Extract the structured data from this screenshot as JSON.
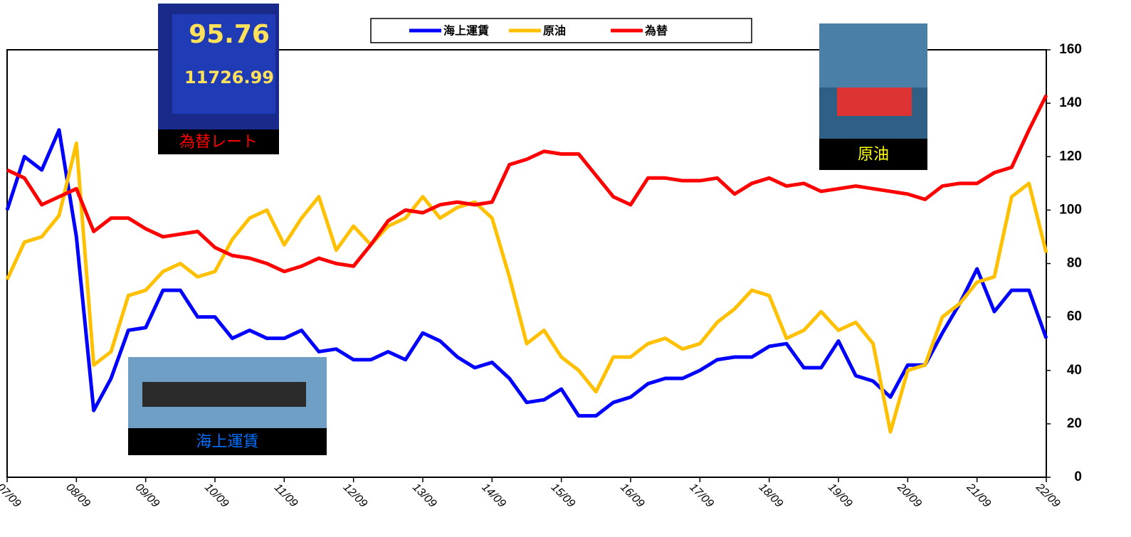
{
  "chart_data": {
    "type": "line",
    "x": [
      2007.67,
      2007.92,
      2008.17,
      2008.42,
      2008.67,
      2008.92,
      2009.17,
      2009.42,
      2009.67,
      2009.92,
      2010.17,
      2010.42,
      2010.67,
      2010.92,
      2011.17,
      2011.42,
      2011.67,
      2011.92,
      2012.17,
      2012.42,
      2012.67,
      2012.92,
      2013.17,
      2013.42,
      2013.67,
      2013.92,
      2014.17,
      2014.42,
      2014.67,
      2014.92,
      2015.17,
      2015.42,
      2015.67,
      2015.92,
      2016.17,
      2016.42,
      2016.67,
      2016.92,
      2017.17,
      2017.42,
      2017.67,
      2017.92,
      2018.17,
      2018.42,
      2018.67,
      2018.92,
      2019.17,
      2019.42,
      2019.67,
      2019.92,
      2020.17,
      2020.42,
      2020.67,
      2020.92,
      2021.17,
      2021.42,
      2021.67,
      2021.92,
      2022.17,
      2022.42,
      2022.67
    ],
    "series": [
      {
        "name": "海上運賃",
        "color": "#0000ff",
        "values": [
          100,
          120,
          115,
          130,
          90,
          25,
          37,
          55,
          56,
          70,
          70,
          60,
          60,
          52,
          55,
          52,
          52,
          55,
          47,
          48,
          44,
          44,
          47,
          44,
          54,
          51,
          45,
          41,
          43,
          37,
          28,
          29,
          33,
          23,
          23,
          28,
          30,
          35,
          37,
          37,
          40,
          44,
          45,
          45,
          49,
          50,
          41,
          41,
          51,
          38,
          36,
          30,
          42,
          42,
          54,
          65,
          78,
          62,
          70,
          70,
          52
        ]
      },
      {
        "name": "原油",
        "color": "#ffc000",
        "values": [
          74,
          88,
          90,
          98,
          125,
          42,
          47,
          68,
          70,
          77,
          80,
          75,
          77,
          89,
          97,
          100,
          87,
          97,
          105,
          85,
          94,
          87,
          94,
          97,
          105,
          97,
          101,
          103,
          97,
          75,
          50,
          55,
          45,
          40,
          32,
          45,
          45,
          50,
          52,
          48,
          50,
          58,
          63,
          70,
          68,
          52,
          55,
          62,
          55,
          58,
          50,
          17,
          40,
          42,
          60,
          65,
          73,
          75,
          105,
          110,
          84
        ]
      },
      {
        "name": "為替",
        "color": "#ff0000",
        "values": [
          115,
          112,
          102,
          105,
          108,
          92,
          97,
          97,
          93,
          90,
          91,
          92,
          86,
          83,
          82,
          80,
          77,
          79,
          82,
          80,
          79,
          87,
          96,
          100,
          99,
          102,
          103,
          102,
          103,
          117,
          119,
          122,
          121,
          121,
          113,
          105,
          102,
          112,
          112,
          111,
          111,
          112,
          106,
          110,
          112,
          109,
          110,
          107,
          108,
          109,
          108,
          107,
          106,
          104,
          109,
          110,
          110,
          114,
          116,
          130,
          143
        ]
      }
    ],
    "xlim": [
      2007.67,
      2022.67
    ],
    "xticks": [
      {
        "value": 2007.67,
        "label": "07/09"
      },
      {
        "value": 2008.67,
        "label": "08/09"
      },
      {
        "value": 2009.67,
        "label": "09/09"
      },
      {
        "value": 2010.67,
        "label": "10/09"
      },
      {
        "value": 2011.67,
        "label": "11/09"
      },
      {
        "value": 2012.67,
        "label": "12/09"
      },
      {
        "value": 2013.67,
        "label": "13/09"
      },
      {
        "value": 2014.67,
        "label": "14/09"
      },
      {
        "value": 2015.67,
        "label": "15/09"
      },
      {
        "value": 2016.67,
        "label": "16/09"
      },
      {
        "value": 2017.67,
        "label": "17/09"
      },
      {
        "value": 2018.67,
        "label": "18/09"
      },
      {
        "value": 2019.67,
        "label": "19/09"
      },
      {
        "value": 2020.67,
        "label": "20/09"
      },
      {
        "value": 2021.67,
        "label": "21/09"
      },
      {
        "value": 2022.67,
        "label": "22/09"
      }
    ],
    "ylim": [
      0,
      160
    ],
    "yticks": [
      0,
      20,
      40,
      60,
      80,
      100,
      120,
      140,
      160
    ],
    "y_axis_side": "right",
    "legend": "top",
    "annotations": [
      {
        "text": "為替レート",
        "color": "#ff0000",
        "photo_texts": [
          "95.76",
          "11726.99"
        ]
      },
      {
        "text": "原油",
        "color": "#ffff00"
      },
      {
        "text": "海上運賃",
        "color": "#0070ff"
      }
    ]
  }
}
